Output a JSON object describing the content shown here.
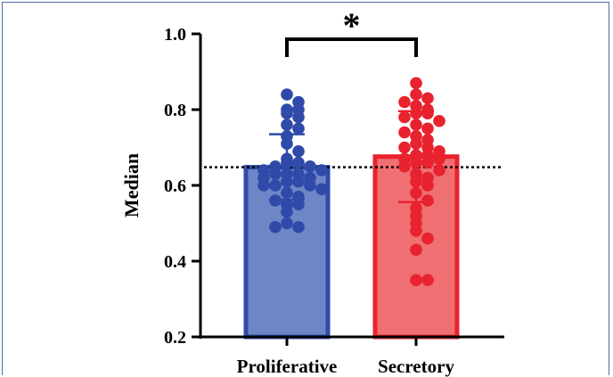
{
  "chart_data": {
    "type": "bar",
    "ylabel": "Median",
    "ylim": [
      0.2,
      1.0
    ],
    "yticks": [
      {
        "value": 0.2,
        "label": "0.2"
      },
      {
        "value": 0.4,
        "label": "0.4"
      },
      {
        "value": 0.6,
        "label": "0.6"
      },
      {
        "value": 0.8,
        "label": "0.8"
      },
      {
        "value": 1.0,
        "label": "1.0"
      }
    ],
    "categories": [
      "Proliferative",
      "Secretory"
    ],
    "values": [
      0.648,
      0.676
    ],
    "error_bars": [
      {
        "low": 0.562,
        "high": 0.735
      },
      {
        "low": 0.556,
        "high": 0.796
      }
    ],
    "reference_line": 0.648,
    "significance": {
      "text": "*",
      "between": [
        "Proliferative",
        "Secretory"
      ]
    },
    "colors": {
      "Proliferative": {
        "fill": "#6f86c6",
        "edge": "#2f4aa8",
        "point": "#2f4aa8"
      },
      "Secretory": {
        "fill": "#ef6f72",
        "edge": "#e8222e",
        "point": "#e8222e"
      }
    },
    "points": {
      "Proliferative": [
        0.84,
        0.82,
        0.8,
        0.8,
        0.79,
        0.78,
        0.76,
        0.75,
        0.73,
        0.71,
        0.69,
        0.67,
        0.66,
        0.66,
        0.65,
        0.65,
        0.64,
        0.64,
        0.63,
        0.63,
        0.63,
        0.62,
        0.62,
        0.61,
        0.61,
        0.6,
        0.6,
        0.6,
        0.59,
        0.58,
        0.57,
        0.56,
        0.55,
        0.55,
        0.53,
        0.5,
        0.49,
        0.49
      ],
      "Secretory": [
        0.87,
        0.84,
        0.83,
        0.82,
        0.81,
        0.8,
        0.79,
        0.79,
        0.78,
        0.77,
        0.76,
        0.75,
        0.74,
        0.73,
        0.72,
        0.71,
        0.7,
        0.7,
        0.69,
        0.68,
        0.68,
        0.67,
        0.67,
        0.66,
        0.66,
        0.65,
        0.64,
        0.63,
        0.62,
        0.61,
        0.6,
        0.58,
        0.56,
        0.54,
        0.52,
        0.5,
        0.48,
        0.46,
        0.43,
        0.35,
        0.35
      ]
    }
  }
}
